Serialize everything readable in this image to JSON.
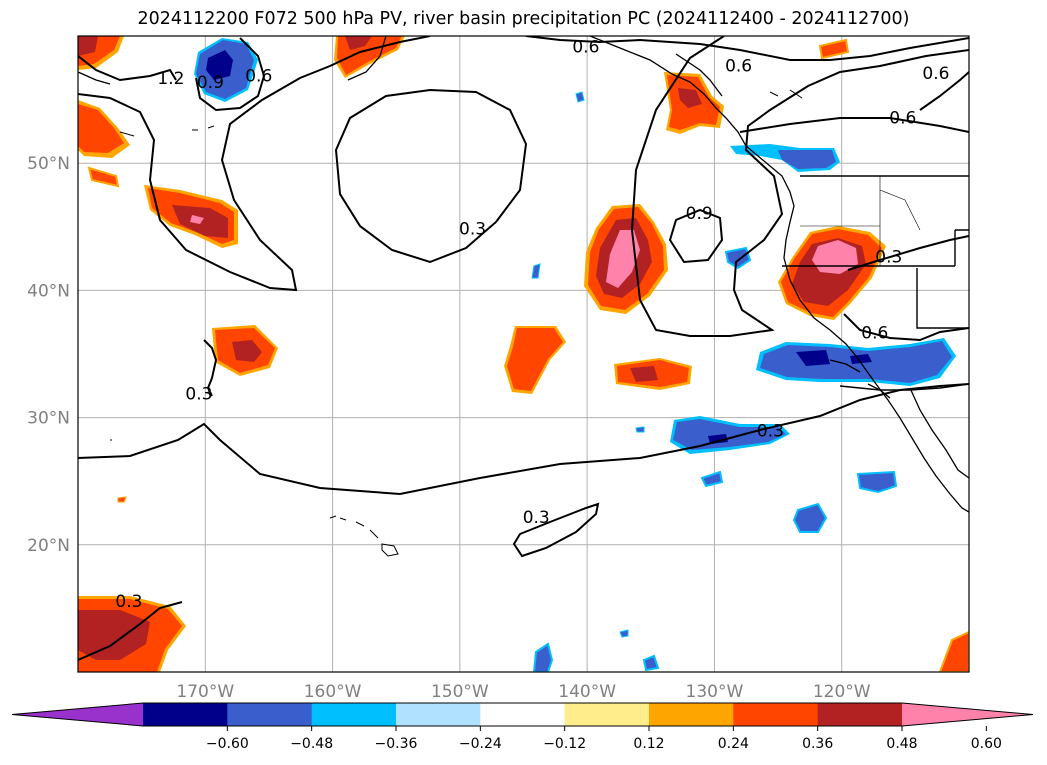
{
  "title": "2024112200 F072 500 hPa PV, river basin precipitation PC (2024112400 - 2024112700)",
  "map": {
    "projection": "PlateCarree",
    "extent": {
      "lon": [
        -180,
        -110
      ],
      "lat": [
        10,
        60
      ]
    },
    "gridlines": true
  },
  "axes": {
    "lon_ticks": [
      {
        "lon": -170,
        "label": "170°W"
      },
      {
        "lon": -160,
        "label": "160°W"
      },
      {
        "lon": -150,
        "label": "150°W"
      },
      {
        "lon": -140,
        "label": "140°W"
      },
      {
        "lon": -130,
        "label": "130°W"
      },
      {
        "lon": -120,
        "label": "120°W"
      }
    ],
    "lat_ticks": [
      {
        "lat": 50,
        "label": "50°N"
      },
      {
        "lat": 40,
        "label": "40°N"
      },
      {
        "lat": 30,
        "label": "30°N"
      },
      {
        "lat": 20,
        "label": "20°N"
      }
    ]
  },
  "colorbar": {
    "colors": [
      "#9932cc",
      "#00008b",
      "#3a5fcd",
      "#00bfff",
      "#b0e2ff",
      "#ffffff",
      "#ffec8b",
      "#ffa500",
      "#ff4500",
      "#b22222",
      "#ff82ab"
    ],
    "ticks": [
      "−0.60",
      "−0.48",
      "−0.36",
      "−0.24",
      "−0.12",
      "0.12",
      "0.24",
      "0.36",
      "0.48",
      "0.60"
    ],
    "extend": "both"
  },
  "pv_contour_labels": [
    {
      "text": "1.2",
      "lon": -172.7,
      "lat": 56.6
    },
    {
      "text": "0.9",
      "lon": -169.6,
      "lat": 56.3
    },
    {
      "text": "0.6",
      "lon": -165.8,
      "lat": 56.8
    },
    {
      "text": "0.3",
      "lon": -149.0,
      "lat": 44.8
    },
    {
      "text": "0.3",
      "lon": -170.5,
      "lat": 31.8
    },
    {
      "text": "0.6",
      "lon": -140.1,
      "lat": 59.1
    },
    {
      "text": "0.6",
      "lon": -128.1,
      "lat": 57.6
    },
    {
      "text": "0.6",
      "lon": -112.6,
      "lat": 57.0
    },
    {
      "text": "0.6",
      "lon": -115.2,
      "lat": 53.5
    },
    {
      "text": "0.9",
      "lon": -131.2,
      "lat": 46.0
    },
    {
      "text": "0.3",
      "lon": -116.3,
      "lat": 42.6
    },
    {
      "text": "0.6",
      "lon": -117.4,
      "lat": 36.6
    },
    {
      "text": "0.3",
      "lon": -125.6,
      "lat": 28.9
    },
    {
      "text": "0.3",
      "lon": -144.0,
      "lat": 22.1
    },
    {
      "text": "0.3",
      "lon": -176.0,
      "lat": 15.5
    }
  ]
}
